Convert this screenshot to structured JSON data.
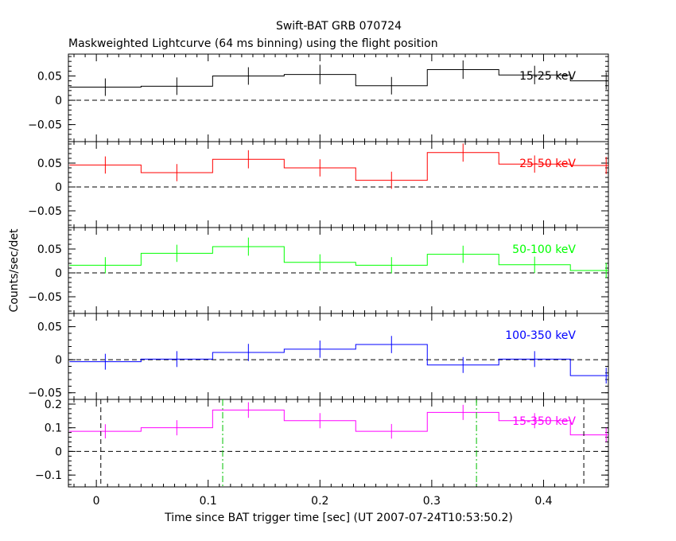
{
  "header": {
    "title": "Swift-BAT GRB 070724",
    "subtitle": "Maskweighted Lightcurve (64 ms binning) using the flight position"
  },
  "axes": {
    "xlabel": "Time since BAT trigger time [sec] (UT 2007-07-24T10:53:50.2)",
    "ylabel": "Counts/sec/det"
  },
  "chart_data": {
    "type": "line",
    "title": "Swift-BAT GRB 070724",
    "subtitle": "Maskweighted Lightcurve (64 ms binning) using the flight position",
    "xlabel": "Time since BAT trigger time [sec] (UT 2007-07-24T10:53:50.2)",
    "ylabel": "Counts/sec/det",
    "xlim": [
      -0.025,
      0.458
    ],
    "x_ticks": [
      "0",
      "0.1",
      "0.2",
      "0.3",
      "0.4"
    ],
    "bin_edges": [
      -0.024,
      0.04,
      0.104,
      0.168,
      0.232,
      0.296,
      0.36,
      0.424,
      0.458
    ],
    "bin_centers": [
      0.008,
      0.072,
      0.136,
      0.2,
      0.264,
      0.328,
      0.392,
      0.456
    ],
    "panels": [
      {
        "name": "15-25 keV",
        "color": "#000000",
        "ylim": [
          -0.085,
          0.095
        ],
        "y_ticks": [
          "0.05",
          "0",
          "−0.05"
        ],
        "y_tick_values": [
          0.05,
          0,
          -0.05
        ],
        "values": [
          0.027,
          0.029,
          0.05,
          0.053,
          0.03,
          0.063,
          0.052,
          0.04
        ],
        "errors": [
          0.018,
          0.018,
          0.018,
          0.02,
          0.018,
          0.019,
          0.019,
          0.018
        ]
      },
      {
        "name": "25-50 keV",
        "color": "#ff0000",
        "ylim": [
          -0.085,
          0.095
        ],
        "y_ticks": [
          "0.05",
          "0",
          "−0.05"
        ],
        "y_tick_values": [
          0.05,
          0,
          -0.05
        ],
        "values": [
          0.046,
          0.03,
          0.058,
          0.04,
          0.014,
          0.072,
          0.048,
          0.045
        ],
        "errors": [
          0.018,
          0.018,
          0.019,
          0.018,
          0.018,
          0.019,
          0.018,
          0.018
        ]
      },
      {
        "name": "50-100 keV",
        "color": "#00ff00",
        "ylim": [
          -0.085,
          0.095
        ],
        "y_ticks": [
          "0.05",
          "0",
          "−0.05"
        ],
        "y_tick_values": [
          0.05,
          0,
          -0.05
        ],
        "values": [
          0.016,
          0.041,
          0.055,
          0.022,
          0.016,
          0.039,
          0.017,
          0.005
        ],
        "errors": [
          0.017,
          0.018,
          0.019,
          0.017,
          0.017,
          0.018,
          0.017,
          0.016
        ]
      },
      {
        "name": "100-350 keV",
        "color": "#0000ff",
        "ylim": [
          -0.06,
          0.07
        ],
        "y_ticks": [
          "0.05",
          "0",
          "−0.05"
        ],
        "y_tick_values": [
          0.05,
          0,
          -0.05
        ],
        "values": [
          -0.003,
          0.001,
          0.011,
          0.016,
          0.023,
          -0.008,
          0.001,
          -0.024
        ],
        "errors": [
          0.012,
          0.012,
          0.013,
          0.013,
          0.013,
          0.012,
          0.012,
          0.012
        ]
      },
      {
        "name": "15-350 keV",
        "color": "#ff00ff",
        "ylim": [
          -0.15,
          0.22
        ],
        "y_ticks": [
          "0.2",
          "0.1",
          "0",
          "−0.1"
        ],
        "y_tick_values": [
          0.2,
          0.1,
          0,
          -0.1
        ],
        "values": [
          0.085,
          0.1,
          0.175,
          0.13,
          0.085,
          0.165,
          0.13,
          0.07
        ],
        "errors": [
          0.03,
          0.032,
          0.033,
          0.032,
          0.031,
          0.032,
          0.032,
          0.03
        ]
      }
    ],
    "vertical_markers": [
      {
        "x": 0.004,
        "color": "#000000",
        "style": "dashed"
      },
      {
        "x": 0.436,
        "color": "#000000",
        "style": "dashed"
      },
      {
        "x": 0.113,
        "color": "#00c000",
        "style": "dashdot"
      },
      {
        "x": 0.34,
        "color": "#00c000",
        "style": "dashdot"
      }
    ],
    "grid": false,
    "legend": "top-right of each panel"
  }
}
